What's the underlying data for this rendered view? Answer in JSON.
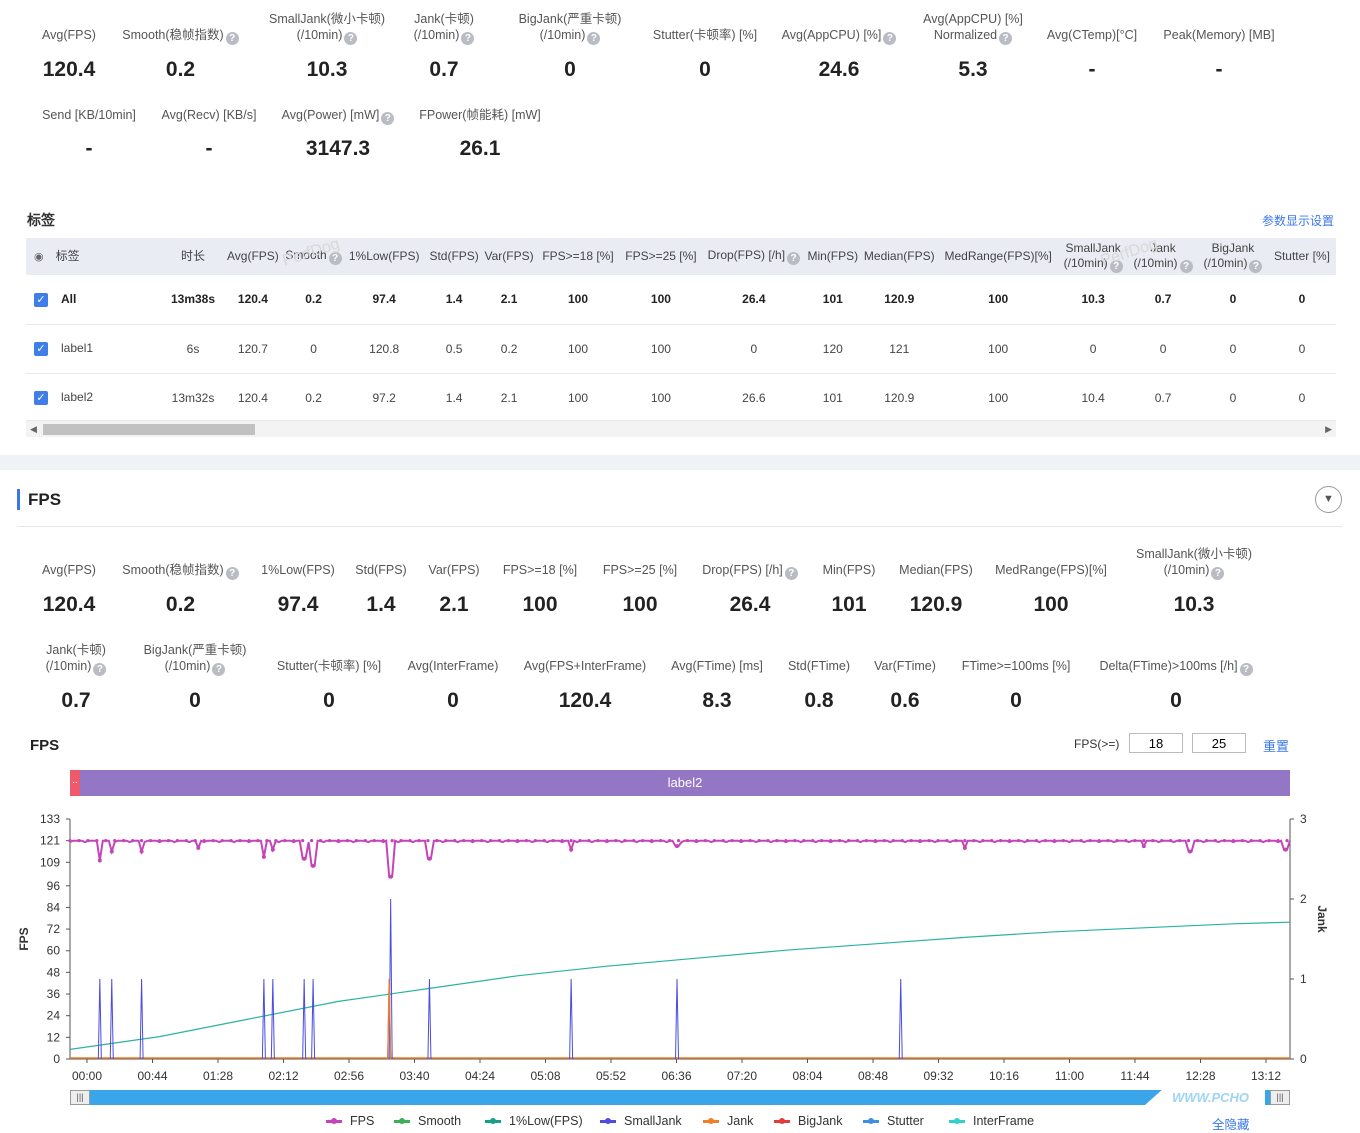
{
  "summary_metrics": [
    {
      "label": "Avg(FPS)",
      "value": "120.4",
      "help": false
    },
    {
      "label": "Smooth(稳帧指数)",
      "value": "0.2",
      "help": true
    },
    {
      "label": "SmallJank(微小卡顿)\n(/10min)",
      "value": "10.3",
      "help": true
    },
    {
      "label": "Jank(卡顿)\n(/10min)",
      "value": "0.7",
      "help": true
    },
    {
      "label": "BigJank(严重卡顿)\n(/10min)",
      "value": "0",
      "help": true
    },
    {
      "label": "Stutter(卡顿率) [%]",
      "value": "0",
      "help": false
    },
    {
      "label": "Avg(AppCPU) [%]",
      "value": "24.6",
      "help": true
    },
    {
      "label": "Avg(AppCPU) [%]\nNormalized",
      "value": "5.3",
      "help": true
    },
    {
      "label": "Avg(CTemp)[°C]",
      "value": "-",
      "help": false
    },
    {
      "label": "Peak(Memory) [MB]",
      "value": "-",
      "help": false
    },
    {
      "label": "Send [KB/10min]",
      "value": "-",
      "help": false
    },
    {
      "label": "Avg(Recv) [KB/s]",
      "value": "-",
      "help": false
    },
    {
      "label": "Avg(Power) [mW]",
      "value": "3147.3",
      "help": true
    },
    {
      "label": "FPower(帧能耗) [mW]",
      "value": "26.1",
      "help": false
    }
  ],
  "labels_section": {
    "title": "标签",
    "settings_link": "参数显示设置",
    "headers": [
      "标签",
      "时长",
      "Avg(FPS)",
      "Smooth",
      "1%Low(FPS)",
      "Std(FPS)",
      "Var(FPS)",
      "FPS>=18 [%]",
      "FPS>=25 [%]",
      "Drop(FPS) [/h]",
      "Min(FPS)",
      "Median(FPS)",
      "MedRange(FPS)[%]",
      "SmallJank\n(/10min)",
      "Jank\n(/10min)",
      "BigJank\n(/10min)",
      "Stutter [%]"
    ],
    "rows": [
      [
        "All",
        "13m38s",
        "120.4",
        "0.2",
        "97.4",
        "1.4",
        "2.1",
        "100",
        "100",
        "26.4",
        "101",
        "120.9",
        "100",
        "10.3",
        "0.7",
        "0",
        "0"
      ],
      [
        "label1",
        "6s",
        "120.7",
        "0",
        "120.8",
        "0.5",
        "0.2",
        "100",
        "100",
        "0",
        "120",
        "121",
        "100",
        "0",
        "0",
        "0",
        "0"
      ],
      [
        "label2",
        "13m32s",
        "120.4",
        "0.2",
        "97.2",
        "1.4",
        "2.1",
        "100",
        "100",
        "26.6",
        "101",
        "120.9",
        "100",
        "10.4",
        "0.7",
        "0",
        "0"
      ]
    ],
    "watermark": "PerfDog"
  },
  "fps_section": {
    "title": "FPS",
    "metrics": [
      {
        "label": "Avg(FPS)",
        "value": "120.4",
        "help": false
      },
      {
        "label": "Smooth(稳帧指数)",
        "value": "0.2",
        "help": true
      },
      {
        "label": "1%Low(FPS)",
        "value": "97.4",
        "help": false
      },
      {
        "label": "Std(FPS)",
        "value": "1.4",
        "help": false
      },
      {
        "label": "Var(FPS)",
        "value": "2.1",
        "help": false
      },
      {
        "label": "FPS>=18 [%]",
        "value": "100",
        "help": false
      },
      {
        "label": "FPS>=25 [%]",
        "value": "100",
        "help": false
      },
      {
        "label": "Drop(FPS) [/h]",
        "value": "26.4",
        "help": true
      },
      {
        "label": "Min(FPS)",
        "value": "101",
        "help": false
      },
      {
        "label": "Median(FPS)",
        "value": "120.9",
        "help": false
      },
      {
        "label": "MedRange(FPS)[%]",
        "value": "100",
        "help": false
      },
      {
        "label": "SmallJank(微小卡顿)\n(/10min)",
        "value": "10.3",
        "help": true
      },
      {
        "label": "Jank(卡顿)\n(/10min)",
        "value": "0.7",
        "help": true
      },
      {
        "label": "BigJank(严重卡顿)\n(/10min)",
        "value": "0",
        "help": true
      },
      {
        "label": "Stutter(卡顿率) [%]",
        "value": "0",
        "help": false
      },
      {
        "label": "Avg(InterFrame)",
        "value": "0",
        "help": false
      },
      {
        "label": "Avg(FPS+InterFrame)",
        "value": "120.4",
        "help": false
      },
      {
        "label": "Avg(FTime) [ms]",
        "value": "8.3",
        "help": false
      },
      {
        "label": "Std(FTime)",
        "value": "0.8",
        "help": false
      },
      {
        "label": "Var(FTime)",
        "value": "0.6",
        "help": false
      },
      {
        "label": "FTime>=100ms [%]",
        "value": "0",
        "help": false
      },
      {
        "label": "Delta(FTime)>100ms [/h]",
        "value": "0",
        "help": true
      }
    ],
    "chart_title": "FPS",
    "threshold_label": "FPS(>=)",
    "threshold_1": "18",
    "threshold_2": "25",
    "reset_label": "重置",
    "label_bar_text": "label2",
    "label_bar_mini": "..",
    "hide_label": "全隐藏",
    "watermark": "WWW.PCHO"
  },
  "chart_data": {
    "type": "line",
    "ylabel": "FPS",
    "y2label": "Jank",
    "yticks": [
      0,
      12,
      24,
      36,
      48,
      60,
      72,
      84,
      96,
      109,
      121,
      133
    ],
    "y2ticks": [
      0,
      1,
      2,
      3
    ],
    "ylim": [
      0,
      133
    ],
    "y2lim": [
      0,
      3
    ],
    "xticks": [
      "00:00",
      "00:44",
      "01:28",
      "02:12",
      "02:56",
      "03:40",
      "04:24",
      "05:08",
      "05:52",
      "06:36",
      "07:20",
      "08:04",
      "08:48",
      "09:32",
      "10:16",
      "11:00",
      "11:44",
      "12:28",
      "13:12"
    ],
    "x_range_seconds": [
      0,
      818
    ],
    "legend": [
      "FPS",
      "Smooth",
      "1%Low(FPS)",
      "SmallJank",
      "Jank",
      "BigJank",
      "Stutter",
      "InterFrame"
    ],
    "colors": {
      "FPS": "#c545b8",
      "Smooth": "#3fae55",
      "1%Low(FPS)": "#16a085",
      "SmallJank": "#4a4de0",
      "Jank": "#f07d2a",
      "BigJank": "#e23b3b",
      "Stutter": "#3d8fe0",
      "InterFrame": "#2fd1c8",
      "SmoothLine": "#2ab3a0"
    },
    "fps_baseline": 121,
    "fps_dips": [
      {
        "t": 20,
        "v": 110
      },
      {
        "t": 28,
        "v": 115
      },
      {
        "t": 48,
        "v": 115
      },
      {
        "t": 86,
        "v": 117
      },
      {
        "t": 130,
        "v": 112
      },
      {
        "t": 136,
        "v": 116
      },
      {
        "t": 157,
        "v": 111
      },
      {
        "t": 163,
        "v": 107
      },
      {
        "t": 215,
        "v": 101
      },
      {
        "t": 241,
        "v": 111
      },
      {
        "t": 336,
        "v": 116
      },
      {
        "t": 407,
        "v": 118
      },
      {
        "t": 600,
        "v": 117
      },
      {
        "t": 720,
        "v": 118
      },
      {
        "t": 751,
        "v": 115
      },
      {
        "t": 815,
        "v": 116
      }
    ],
    "smooth_curve": [
      {
        "t": 0,
        "v": 0.12
      },
      {
        "t": 60,
        "v": 0.28
      },
      {
        "t": 120,
        "v": 0.5
      },
      {
        "t": 180,
        "v": 0.72
      },
      {
        "t": 240,
        "v": 0.88
      },
      {
        "t": 300,
        "v": 1.04
      },
      {
        "t": 360,
        "v": 1.16
      },
      {
        "t": 420,
        "v": 1.26
      },
      {
        "t": 480,
        "v": 1.36
      },
      {
        "t": 540,
        "v": 1.44
      },
      {
        "t": 600,
        "v": 1.52
      },
      {
        "t": 660,
        "v": 1.59
      },
      {
        "t": 720,
        "v": 1.64
      },
      {
        "t": 780,
        "v": 1.69
      },
      {
        "t": 818,
        "v": 1.71
      }
    ],
    "smalljank_spikes": [
      {
        "t": 20,
        "v": 1
      },
      {
        "t": 28,
        "v": 1
      },
      {
        "t": 48,
        "v": 1
      },
      {
        "t": 130,
        "v": 1
      },
      {
        "t": 136,
        "v": 1
      },
      {
        "t": 157,
        "v": 1
      },
      {
        "t": 163,
        "v": 1
      },
      {
        "t": 214,
        "v": 1
      },
      {
        "t": 215,
        "v": 2
      },
      {
        "t": 241,
        "v": 1
      },
      {
        "t": 336,
        "v": 1
      },
      {
        "t": 407,
        "v": 1
      },
      {
        "t": 557,
        "v": 1
      }
    ],
    "jank_spikes": [
      {
        "t": 214,
        "v": 1
      }
    ]
  }
}
